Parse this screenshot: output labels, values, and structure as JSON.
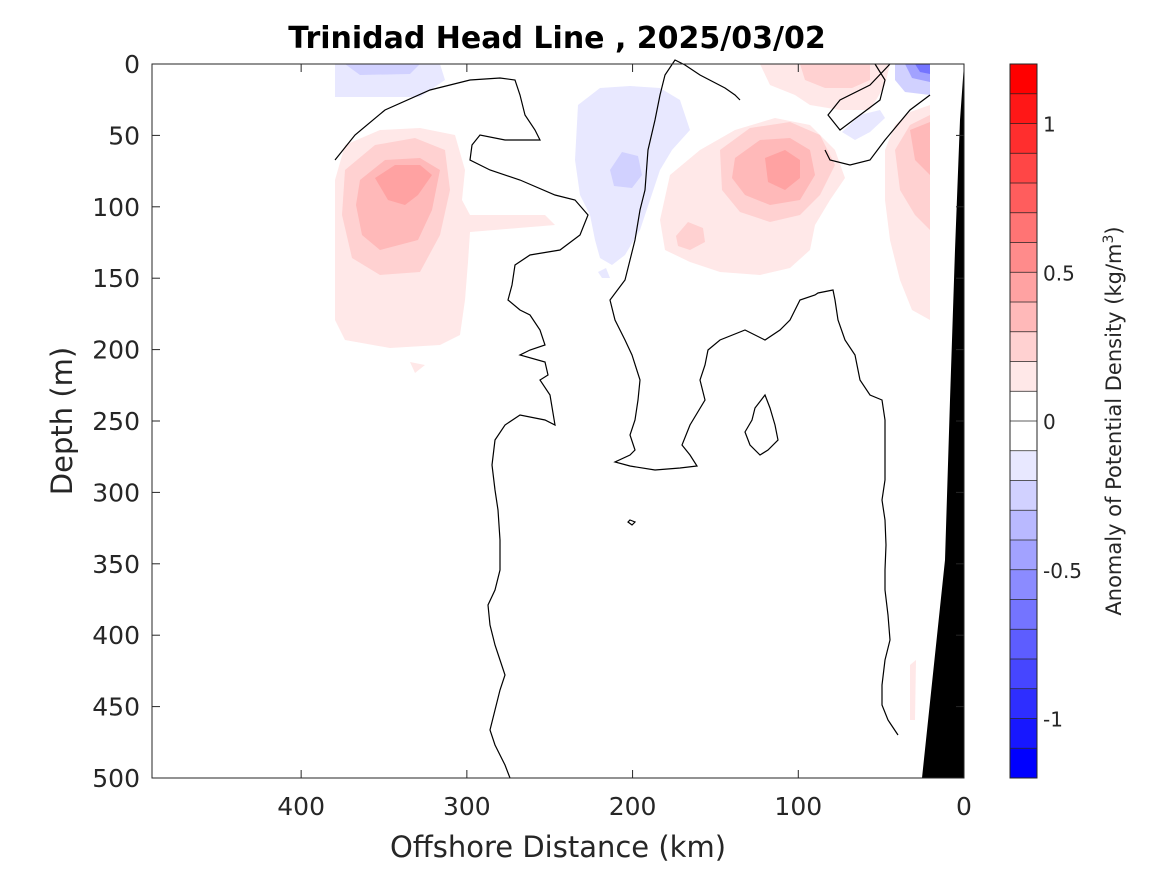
{
  "chart_data": {
    "type": "heatmap",
    "title": "Trinidad Head Line , 2025/03/02",
    "xlabel": "Offshore Distance (km)",
    "ylabel": "Depth (m)",
    "xlim": [
      490,
      0
    ],
    "ylim": [
      500,
      0
    ],
    "x_ticks": [
      "400",
      "300",
      "200",
      "100",
      "0"
    ],
    "x_tick_values": [
      400,
      300,
      200,
      100,
      0
    ],
    "y_ticks": [
      "0",
      "50",
      "100",
      "150",
      "200",
      "250",
      "300",
      "350",
      "400",
      "450",
      "500"
    ],
    "y_tick_values": [
      0,
      50,
      100,
      150,
      200,
      250,
      300,
      350,
      400,
      450,
      500
    ],
    "colorbar": {
      "label": "Anomaly of Potential Density (kg/m",
      "label_sup": "3",
      "label_end": ")",
      "range": [
        -1.2,
        1.2
      ],
      "ticks": [
        "1",
        "0.5",
        "0",
        "-0.5",
        "-1"
      ],
      "tick_values": [
        1,
        0.5,
        0,
        -0.5,
        -1
      ],
      "colors": [
        "#0000ff",
        "#1717ff",
        "#2e2eff",
        "#4646ff",
        "#5d5dff",
        "#7474ff",
        "#8b8bff",
        "#a2a2ff",
        "#b9b9ff",
        "#d1d1ff",
        "#e8e8ff",
        "#ffffff",
        "#ffffff",
        "#ffe8e8",
        "#ffd1d1",
        "#ffb9b9",
        "#ffa2a2",
        "#ff8b8b",
        "#ff7474",
        "#ff5d5d",
        "#ff4646",
        "#ff2e2e",
        "#ff1717",
        "#ff0000"
      ]
    },
    "features": [
      {
        "name": "positive anomaly 350 km",
        "center": [
          345,
          85
        ],
        "peak": 0.4
      },
      {
        "name": "positive anomaly 110 km",
        "center": [
          110,
          75
        ],
        "peak": 0.4
      },
      {
        "name": "positive anomaly 80 km surface",
        "center": [
          80,
          5
        ],
        "peak": 0.3
      },
      {
        "name": "positive anomaly 20 km",
        "center": [
          20,
          100
        ],
        "peak": 0.3
      },
      {
        "name": "negative anomaly 200 km",
        "center": [
          205,
          75
        ],
        "peak": -0.2
      },
      {
        "name": "negative anomaly 300 km surface",
        "center": [
          300,
          3
        ],
        "peak": -0.2
      },
      {
        "name": "negative anomaly 25 km surface",
        "center": [
          25,
          3
        ],
        "peak": -0.4
      }
    ],
    "zero_contour": true,
    "bathymetry_color": "#000000"
  }
}
